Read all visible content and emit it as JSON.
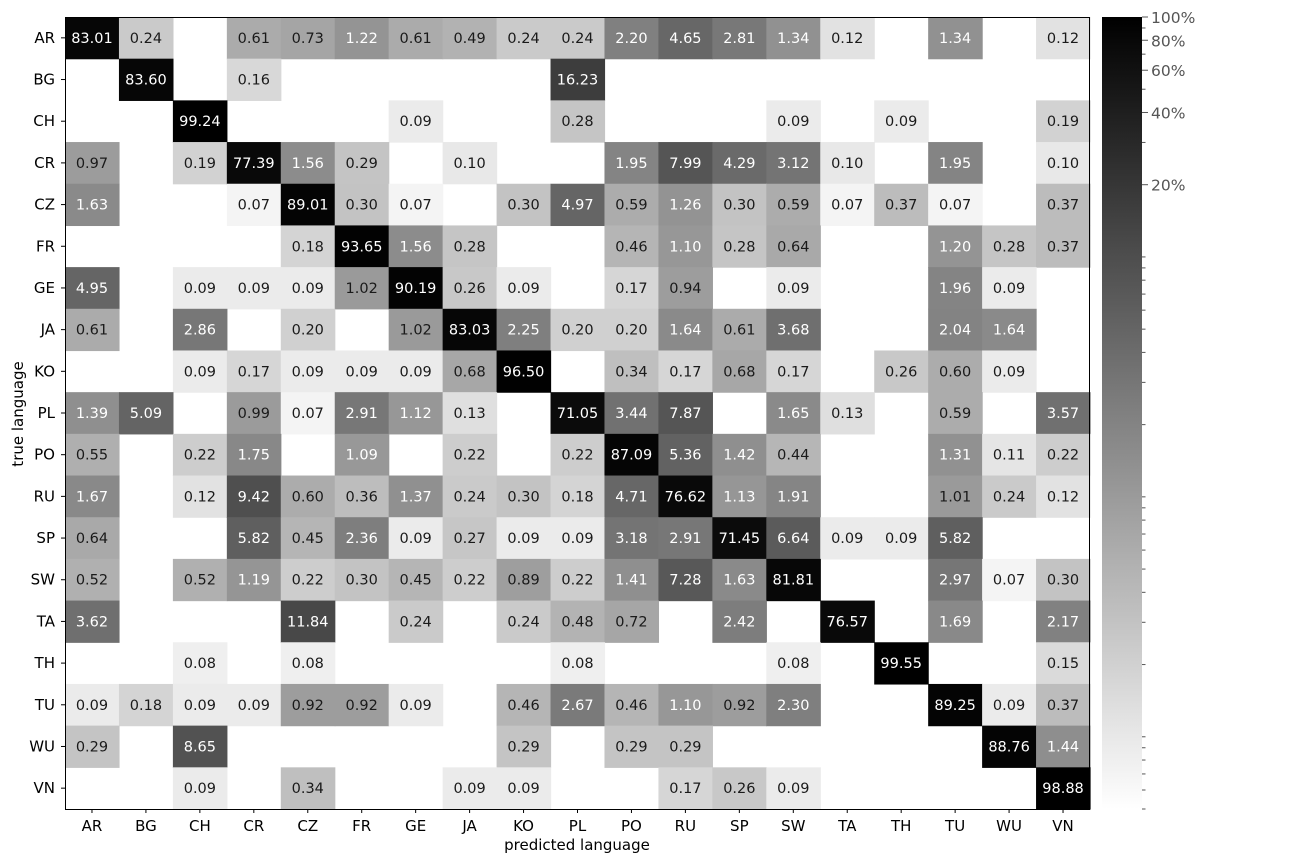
{
  "chart_data": {
    "type": "heatmap",
    "xlabel": "predicted language",
    "ylabel": "true language",
    "x_categories": [
      "AR",
      "BG",
      "CH",
      "CR",
      "CZ",
      "FR",
      "GE",
      "JA",
      "KO",
      "PL",
      "PO",
      "RU",
      "SP",
      "SW",
      "TA",
      "TH",
      "TU",
      "WU",
      "VN"
    ],
    "y_categories": [
      "AR",
      "BG",
      "CH",
      "CR",
      "CZ",
      "FR",
      "GE",
      "JA",
      "KO",
      "PL",
      "PO",
      "RU",
      "SP",
      "SW",
      "TA",
      "TH",
      "TU",
      "WU",
      "VN"
    ],
    "values": [
      [
        83.01,
        0.24,
        null,
        0.61,
        0.73,
        1.22,
        0.61,
        0.49,
        0.24,
        0.24,
        2.2,
        4.65,
        2.81,
        1.34,
        0.12,
        null,
        1.34,
        null,
        0.12
      ],
      [
        null,
        83.6,
        null,
        0.16,
        null,
        null,
        null,
        null,
        null,
        16.23,
        null,
        null,
        null,
        null,
        null,
        null,
        null,
        null,
        null
      ],
      [
        null,
        null,
        99.24,
        null,
        null,
        null,
        0.09,
        null,
        null,
        0.28,
        null,
        null,
        null,
        0.09,
        null,
        0.09,
        null,
        null,
        0.19
      ],
      [
        0.97,
        null,
        0.19,
        77.39,
        1.56,
        0.29,
        null,
        0.1,
        null,
        null,
        1.95,
        7.99,
        4.29,
        3.12,
        0.1,
        null,
        1.95,
        null,
        0.1
      ],
      [
        1.63,
        null,
        null,
        0.07,
        89.01,
        0.3,
        0.07,
        null,
        0.3,
        4.97,
        0.59,
        1.26,
        0.3,
        0.59,
        0.07,
        0.37,
        0.07,
        null,
        0.37
      ],
      [
        null,
        null,
        null,
        null,
        0.18,
        93.65,
        1.56,
        0.28,
        null,
        null,
        0.46,
        1.1,
        0.28,
        0.64,
        null,
        null,
        1.2,
        0.28,
        0.37
      ],
      [
        4.95,
        null,
        0.09,
        0.09,
        0.09,
        1.02,
        90.19,
        0.26,
        0.09,
        null,
        0.17,
        0.94,
        null,
        0.09,
        null,
        null,
        1.96,
        0.09,
        null
      ],
      [
        0.61,
        null,
        2.86,
        null,
        0.2,
        null,
        1.02,
        83.03,
        2.25,
        0.2,
        0.2,
        1.64,
        0.61,
        3.68,
        null,
        null,
        2.04,
        1.64,
        null
      ],
      [
        null,
        null,
        0.09,
        0.17,
        0.09,
        0.09,
        0.09,
        0.68,
        96.5,
        null,
        0.34,
        0.17,
        0.68,
        0.17,
        null,
        0.26,
        0.6,
        0.09,
        null
      ],
      [
        1.39,
        5.09,
        null,
        0.99,
        0.07,
        2.91,
        1.12,
        0.13,
        null,
        71.05,
        3.44,
        7.87,
        null,
        1.65,
        0.13,
        null,
        0.59,
        null,
        3.57
      ],
      [
        0.55,
        null,
        0.22,
        1.75,
        null,
        1.09,
        null,
        0.22,
        null,
        0.22,
        87.09,
        5.36,
        1.42,
        0.44,
        null,
        null,
        1.31,
        0.11,
        0.22
      ],
      [
        1.67,
        null,
        0.12,
        9.42,
        0.6,
        0.36,
        1.37,
        0.24,
        0.3,
        0.18,
        4.71,
        76.62,
        1.13,
        1.91,
        null,
        null,
        1.01,
        0.24,
        0.12
      ],
      [
        0.64,
        null,
        null,
        5.82,
        0.45,
        2.36,
        0.09,
        0.27,
        0.09,
        0.09,
        3.18,
        2.91,
        71.45,
        6.64,
        0.09,
        0.09,
        5.82,
        null,
        null
      ],
      [
        0.52,
        null,
        0.52,
        1.19,
        0.22,
        0.3,
        0.45,
        0.22,
        0.89,
        0.22,
        1.41,
        7.28,
        1.63,
        81.81,
        null,
        null,
        2.97,
        0.07,
        0.3
      ],
      [
        3.62,
        null,
        null,
        null,
        11.84,
        null,
        0.24,
        null,
        0.24,
        0.48,
        0.72,
        null,
        2.42,
        null,
        76.57,
        null,
        1.69,
        null,
        2.17
      ],
      [
        null,
        null,
        0.08,
        null,
        0.08,
        null,
        null,
        null,
        null,
        0.08,
        null,
        null,
        null,
        0.08,
        null,
        99.55,
        null,
        null,
        0.15
      ],
      [
        0.09,
        0.18,
        0.09,
        0.09,
        0.92,
        0.92,
        0.09,
        null,
        0.46,
        2.67,
        0.46,
        1.1,
        0.92,
        2.3,
        null,
        null,
        89.25,
        0.09,
        0.37
      ],
      [
        0.29,
        null,
        8.65,
        null,
        null,
        null,
        null,
        null,
        0.29,
        null,
        0.29,
        0.29,
        null,
        null,
        null,
        null,
        null,
        88.76,
        1.44
      ],
      [
        null,
        null,
        0.09,
        null,
        0.34,
        null,
        null,
        0.09,
        0.09,
        null,
        null,
        0.17,
        0.26,
        0.09,
        null,
        null,
        null,
        null,
        98.88
      ]
    ],
    "colorbar": {
      "scale": "log",
      "cmap": "gray_r",
      "min": 0.05,
      "max": 100,
      "tick_values": [
        100,
        80,
        60,
        40,
        20
      ],
      "tick_labels": [
        "100%",
        "80%",
        "60%",
        "40%",
        "20%"
      ]
    }
  }
}
